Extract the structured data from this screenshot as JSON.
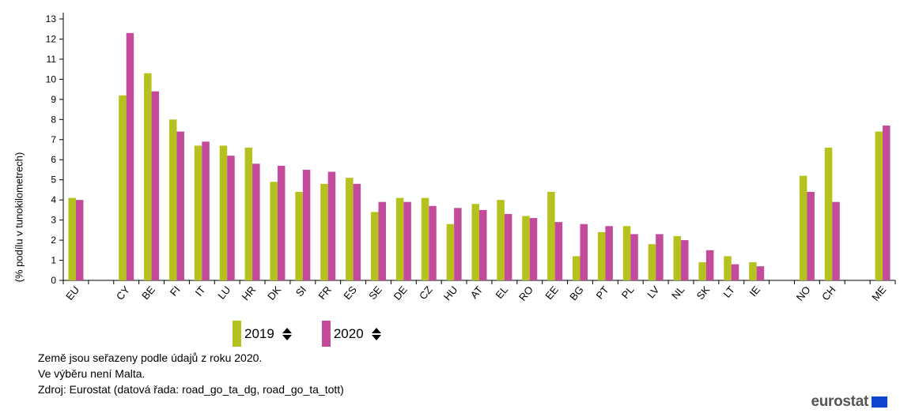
{
  "chart_data": {
    "type": "bar",
    "ylabel": "(% podílu v tunokilometrech)",
    "ylim": [
      0,
      13
    ],
    "yticks": [
      0,
      1,
      2,
      3,
      4,
      5,
      6,
      7,
      8,
      9,
      10,
      11,
      12,
      13
    ],
    "categories": [
      "EU",
      "",
      "CY",
      "BE",
      "FI",
      "IT",
      "LU",
      "HR",
      "DK",
      "SI",
      "FR",
      "ES",
      "SE",
      "DE",
      "CZ",
      "HU",
      "AT",
      "EL",
      "RO",
      "EE",
      "BG",
      "PT",
      "PL",
      "LV",
      "NL",
      "SK",
      "LT",
      "IE",
      "",
      "NO",
      "CH",
      "",
      "ME"
    ],
    "series": [
      {
        "name": "2019",
        "color": "#b5c11d",
        "values": [
          4.1,
          null,
          9.2,
          10.3,
          8.0,
          6.7,
          6.7,
          6.6,
          4.9,
          4.4,
          4.8,
          5.1,
          3.4,
          4.1,
          4.1,
          2.8,
          3.8,
          4.0,
          3.2,
          4.4,
          1.2,
          2.4,
          2.7,
          1.8,
          2.2,
          0.9,
          1.2,
          0.9,
          null,
          5.2,
          6.6,
          null,
          7.4
        ]
      },
      {
        "name": "2020",
        "color": "#c44a9c",
        "values": [
          4.0,
          null,
          12.3,
          9.4,
          7.4,
          6.9,
          6.2,
          5.8,
          5.7,
          5.5,
          5.4,
          4.8,
          3.9,
          3.9,
          3.7,
          3.6,
          3.5,
          3.3,
          3.1,
          2.9,
          2.8,
          2.7,
          2.3,
          2.3,
          2.0,
          1.5,
          0.8,
          0.7,
          null,
          4.4,
          3.9,
          null,
          7.7
        ]
      }
    ],
    "grid": false,
    "legend_position": "bottom-left"
  },
  "legend": {
    "items": [
      {
        "label": "2019",
        "color": "#b5c11d"
      },
      {
        "label": "2020",
        "color": "#c44a9c"
      }
    ]
  },
  "notes": {
    "line1": "Země jsou seřazeny podle údajů z roku 2020.",
    "line2": "Ve výběru není Malta.",
    "line3": "Zdroj: Eurostat (datová řada: road_go_ta_dg, road_go_ta_tott)"
  },
  "logo": {
    "text": "eurostat"
  }
}
